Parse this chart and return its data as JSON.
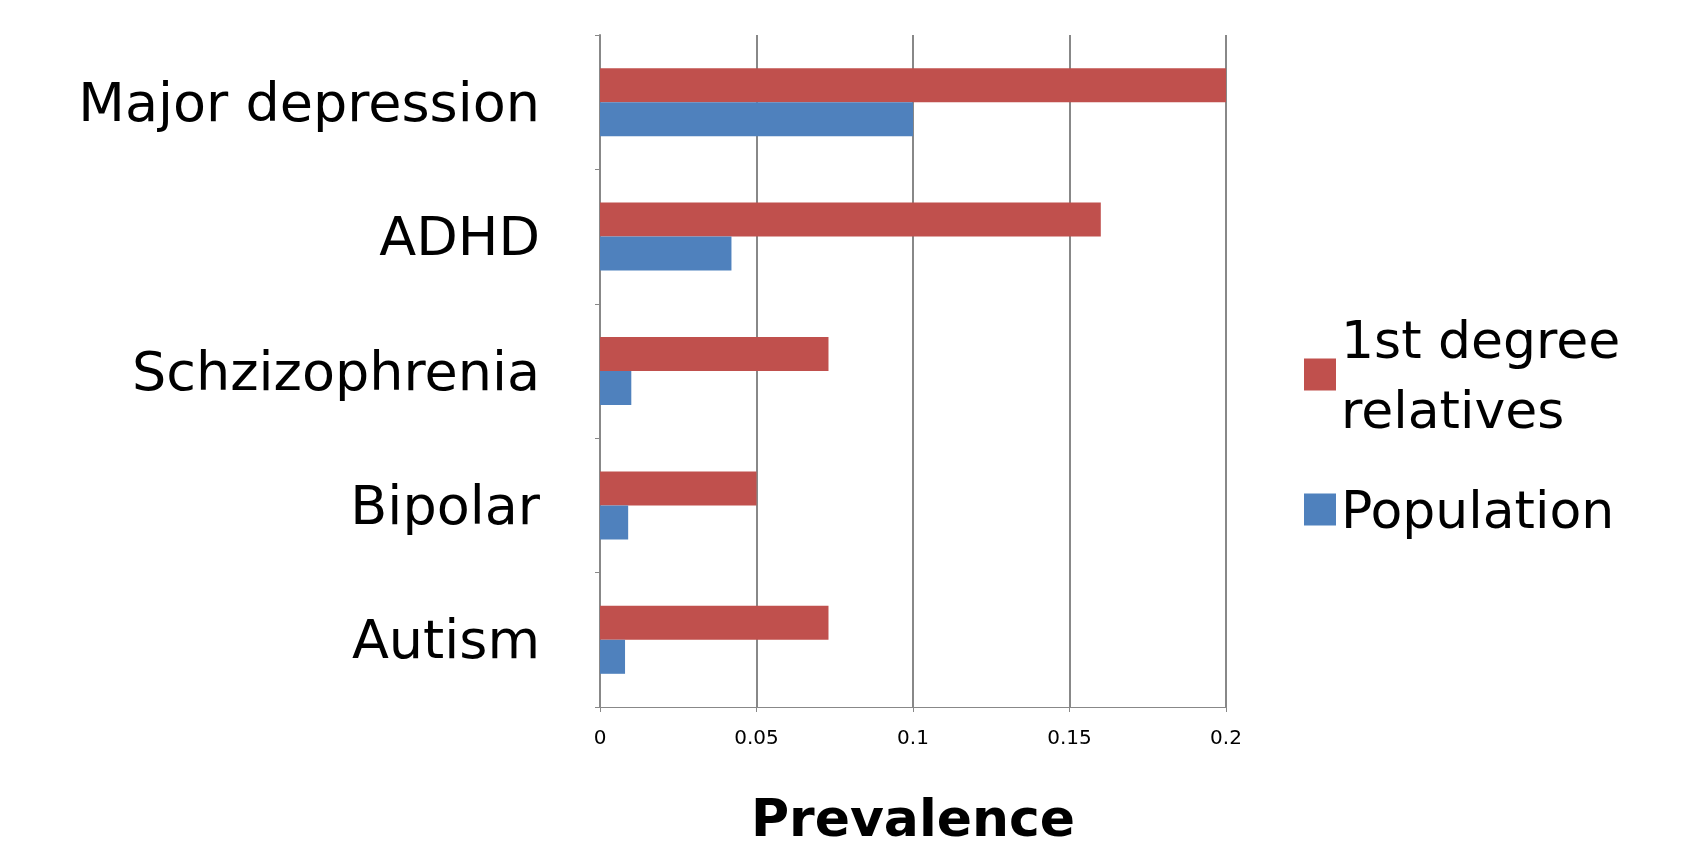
{
  "chart_data": {
    "type": "bar",
    "orientation": "horizontal",
    "xlabel": "Prevalence",
    "categories": [
      "Major depression",
      "ADHD",
      "Schzizophrenia",
      "Bipolar",
      "Autism"
    ],
    "series": [
      {
        "name": "1st degree relatives",
        "color": "#c0504d",
        "values": [
          0.2,
          0.16,
          0.073,
          0.05,
          0.073
        ]
      },
      {
        "name": "Population",
        "color": "#4f81bd",
        "values": [
          0.1,
          0.042,
          0.01,
          0.009,
          0.008
        ]
      }
    ],
    "xlim": [
      0,
      0.2
    ],
    "xticks": [
      0,
      0.05,
      0.1,
      0.15,
      0.2
    ],
    "grid": "x",
    "legend": "right"
  }
}
